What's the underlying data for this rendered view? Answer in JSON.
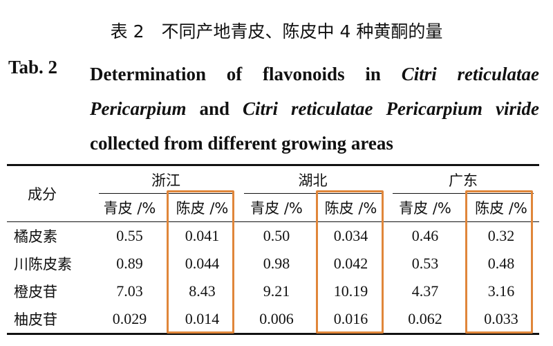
{
  "caption": {
    "zh": "表 2　不同产地青皮、陈皮中 4 种黄酮的量",
    "label": "Tab. 2",
    "en": [
      {
        "text": "Determination of flavonoids in ",
        "italic": false
      },
      {
        "text": "Citri reticulatae Pericarpium",
        "italic": true
      },
      {
        "text": " and ",
        "italic": false
      },
      {
        "text": "Citri reticulatae Pericarpium viride",
        "italic": true
      },
      {
        "text": " collected from different growing areas",
        "italic": false
      }
    ]
  },
  "table": {
    "corner": "成分",
    "groups": [
      {
        "name": "浙江",
        "columns": [
          "青皮 /%",
          "陈皮 /%"
        ]
      },
      {
        "name": "湖北",
        "columns": [
          "青皮 /%",
          "陈皮 /%"
        ]
      },
      {
        "name": "广东",
        "columns": [
          "青皮 /%",
          "陈皮 /%"
        ]
      }
    ],
    "rows": [
      {
        "name": "橘皮素",
        "values": [
          "0.55",
          "0.041",
          "0.50",
          "0.034",
          "0.46",
          "0.32"
        ]
      },
      {
        "name": "川陈皮素",
        "values": [
          "0.89",
          "0.044",
          "0.98",
          "0.042",
          "0.53",
          "0.48"
        ]
      },
      {
        "name": "橙皮苷",
        "values": [
          "7.03",
          "8.43",
          "9.21",
          "10.19",
          "4.37",
          "3.16"
        ]
      },
      {
        "name": "柚皮苷",
        "values": [
          "0.029",
          "0.014",
          "0.006",
          "0.016",
          "0.062",
          "0.033"
        ]
      }
    ]
  }
}
